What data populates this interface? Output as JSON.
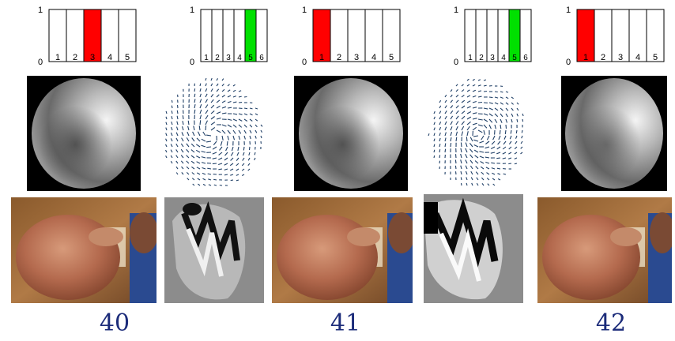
{
  "colors": {
    "frame_number": "#1c2c7a",
    "activation_red": "#ff0000",
    "activation_green": "#00e000",
    "flow_arrow": "#1f3f66"
  },
  "columns": [
    {
      "id": "a",
      "bars": {
        "y_top": "1",
        "y_bottom": "0",
        "cells": [
          "1",
          "2",
          "3",
          "4",
          "5"
        ],
        "active": 3,
        "active_color": "#ff0000"
      },
      "middle": "shading",
      "bottom": "video-frame"
    },
    {
      "id": "b",
      "bars": {
        "y_top": "1",
        "y_bottom": "0",
        "cells": [
          "1",
          "2",
          "3",
          "4",
          "5",
          "6"
        ],
        "active": 5,
        "active_color": "#00e000"
      },
      "middle": "flow-field",
      "bottom": "flow-map"
    },
    {
      "id": "c",
      "bars": {
        "y_top": "1",
        "y_bottom": "0",
        "cells": [
          "1",
          "2",
          "3",
          "4",
          "5"
        ],
        "active": 1,
        "active_color": "#ff0000"
      },
      "middle": "shading",
      "bottom": "video-frame"
    },
    {
      "id": "d",
      "bars": {
        "y_top": "1",
        "y_bottom": "0",
        "cells": [
          "1",
          "2",
          "3",
          "4",
          "5",
          "6"
        ],
        "active": 5,
        "active_color": "#00e000"
      },
      "middle": "flow-field",
      "bottom": "flow-map"
    },
    {
      "id": "e",
      "bars": {
        "y_top": "1",
        "y_bottom": "0",
        "cells": [
          "1",
          "2",
          "3",
          "4",
          "5"
        ],
        "active": 1,
        "active_color": "#ff0000"
      },
      "middle": "shading",
      "bottom": "video-frame"
    }
  ],
  "frame_labels": [
    "40",
    "41",
    "42"
  ]
}
